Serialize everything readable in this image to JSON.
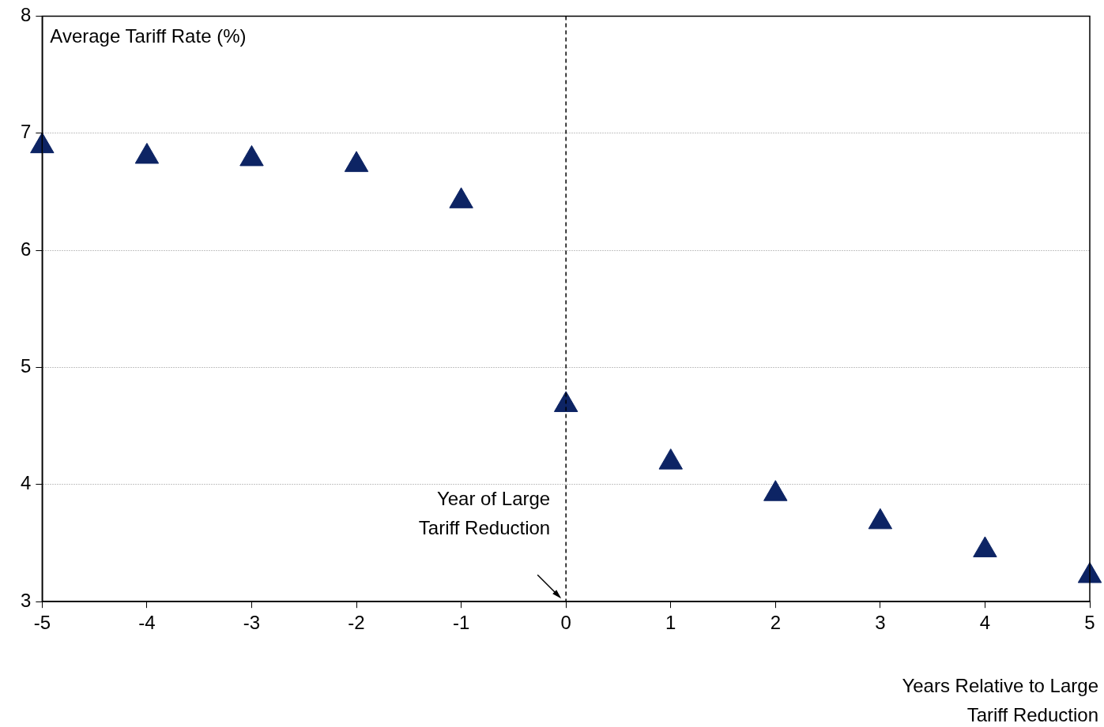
{
  "chart_data": {
    "type": "scatter",
    "ylabel": "Average Tariff Rate (%)",
    "xlabel": "Years Relative to Large Tariff Reduction",
    "x": [
      -5,
      -4,
      -3,
      -2,
      -1,
      0,
      1,
      2,
      3,
      4,
      5
    ],
    "series": [
      {
        "color": "#0d2464",
        "values": [
          6.89,
          6.8,
          6.78,
          6.73,
          6.42,
          4.68,
          4.19,
          3.92,
          3.68,
          3.44,
          3.22
        ]
      }
    ],
    "xlim": [
      -5,
      5
    ],
    "xticks": [
      -5,
      -4,
      -3,
      -2,
      -1,
      0,
      1,
      2,
      3,
      4,
      5
    ],
    "ylim": [
      3,
      8
    ],
    "yticks": [
      3,
      4,
      5,
      6,
      7,
      8
    ],
    "ref_lines": [
      {
        "axis": "x",
        "value": 0,
        "label": "Year of Large Tariff Reduction",
        "line_style": "dashed",
        "color": "#000000"
      }
    ],
    "grid": "y",
    "legend": false,
    "marker": "triangle"
  }
}
